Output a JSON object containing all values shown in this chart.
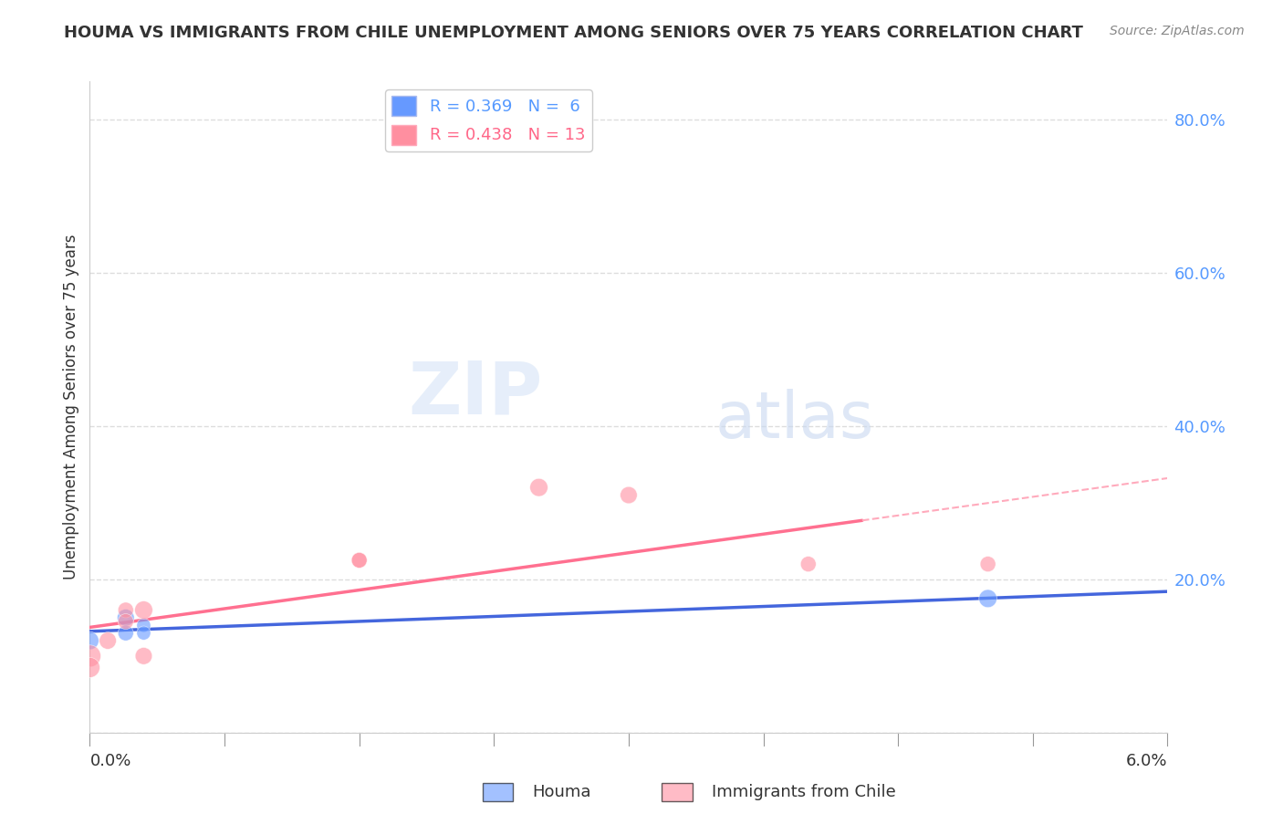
{
  "title": "HOUMA VS IMMIGRANTS FROM CHILE UNEMPLOYMENT AMONG SENIORS OVER 75 YEARS CORRELATION CHART",
  "source": "Source: ZipAtlas.com",
  "ylabel": "Unemployment Among Seniors over 75 years",
  "xlim": [
    0.0,
    0.06
  ],
  "ylim": [
    0.0,
    0.85
  ],
  "yticks": [
    0.0,
    0.2,
    0.4,
    0.6,
    0.8
  ],
  "ytick_labels": [
    "",
    "20.0%",
    "40.0%",
    "60.0%",
    "80.0%"
  ],
  "legend_r1": "R = 0.369",
  "legend_n1": "N =  6",
  "legend_r2": "R = 0.438",
  "legend_n2": "N = 13",
  "houma_color": "#6699FF",
  "chile_color": "#FF8FA0",
  "houma_x": [
    0.0,
    0.002,
    0.002,
    0.003,
    0.003,
    0.05
  ],
  "houma_y": [
    0.12,
    0.15,
    0.13,
    0.14,
    0.13,
    0.175
  ],
  "houma_sizes": [
    200,
    180,
    150,
    120,
    120,
    200
  ],
  "chile_x": [
    0.0,
    0.0,
    0.001,
    0.002,
    0.002,
    0.003,
    0.003,
    0.015,
    0.015,
    0.025,
    0.03,
    0.04,
    0.05
  ],
  "chile_y": [
    0.1,
    0.085,
    0.12,
    0.16,
    0.145,
    0.16,
    0.1,
    0.225,
    0.225,
    0.32,
    0.31,
    0.22,
    0.22
  ],
  "chile_sizes": [
    300,
    250,
    180,
    150,
    150,
    200,
    180,
    150,
    150,
    200,
    180,
    150,
    150
  ],
  "watermark_zip": "ZIP",
  "watermark_atlas": "atlas",
  "background_color": "#ffffff",
  "grid_color": "#dddddd"
}
